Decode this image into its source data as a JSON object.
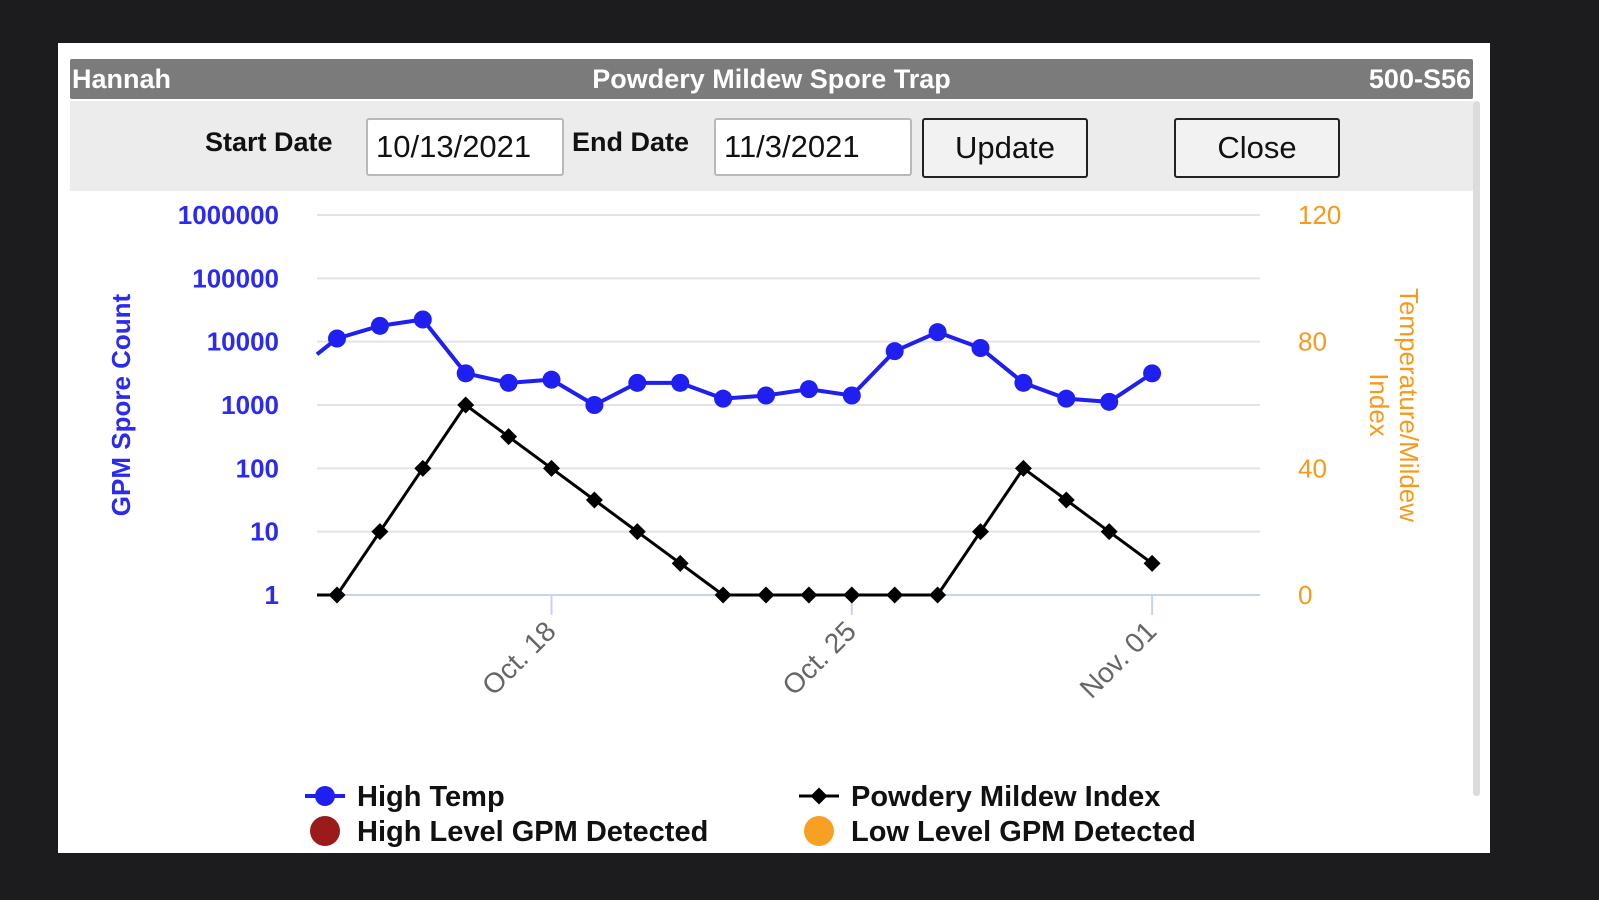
{
  "window": {
    "left_title": "Hannah",
    "title": "Powdery Mildew Spore Trap",
    "right_title": "500-S56"
  },
  "toolbar": {
    "start_label": "Start Date",
    "start_value": "10/13/2021",
    "end_label": "End Date",
    "end_value": "11/3/2021",
    "update_label": "Update",
    "close_label": "Close"
  },
  "colors": {
    "spore_axis": "#2b2bf0",
    "temp_axis": "#f59a1d",
    "high_temp": "#1f1ff2",
    "mildew_index": "#000000",
    "high_level_gpm": "#9b1b1b",
    "low_level_gpm": "#f7a024"
  },
  "chart_data": {
    "type": "line",
    "x": [
      "2021-10-13",
      "2021-10-14",
      "2021-10-15",
      "2021-10-16",
      "2021-10-17",
      "2021-10-18",
      "2021-10-19",
      "2021-10-20",
      "2021-10-21",
      "2021-10-22",
      "2021-10-23",
      "2021-10-24",
      "2021-10-25",
      "2021-10-26",
      "2021-10-27",
      "2021-10-28",
      "2021-10-29",
      "2021-10-30",
      "2021-10-31",
      "2021-11-01"
    ],
    "x_ticks": [
      "Oct. 18",
      "Oct. 25",
      "Nov. 01"
    ],
    "y_left": {
      "label": "GPM Spore Count",
      "scale": "log",
      "ticks": [
        "1",
        "10",
        "100",
        "1000",
        "10000",
        "100000",
        "1000000"
      ],
      "range": [
        1,
        1000000
      ]
    },
    "y_right": {
      "label": "Temperature/Mildew Index",
      "ticks": [
        "0",
        "40",
        "80",
        "120"
      ],
      "range": [
        0,
        120
      ]
    },
    "grid": true,
    "legend_position": "bottom",
    "series": [
      {
        "name": "High Temp",
        "axis": "right",
        "values": [
          81,
          85,
          87,
          70,
          67,
          68,
          60,
          67,
          67,
          62,
          63,
          65,
          63,
          77,
          83,
          78,
          67,
          62,
          61,
          70
        ]
      },
      {
        "name": "Powdery Mildew Index",
        "axis": "right",
        "values": [
          0,
          20,
          40,
          60,
          50,
          40,
          30,
          20,
          10,
          0,
          0,
          0,
          0,
          0,
          0,
          20,
          40,
          30,
          20,
          10
        ]
      }
    ],
    "legend": [
      {
        "name": "High Temp"
      },
      {
        "name": "Powdery Mildew Index"
      },
      {
        "name": "High Level GPM Detected"
      },
      {
        "name": "Low Level GPM Detected"
      }
    ]
  }
}
